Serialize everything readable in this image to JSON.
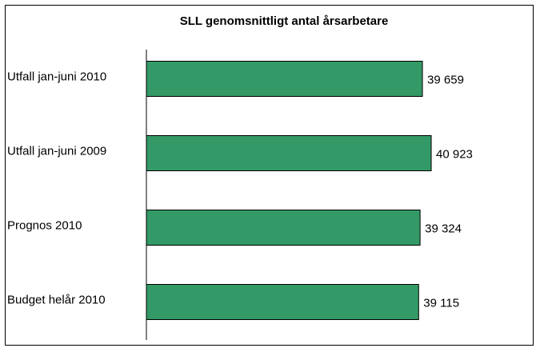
{
  "chart_data": {
    "type": "barh",
    "title": "SLL genomsnittligt antal årsarbetare",
    "categories": [
      "Utfall jan-juni 2010",
      "Utfall jan-juni 2009",
      "Prognos 2010",
      "Budget helår 2010"
    ],
    "values": [
      39659,
      40923,
      39324,
      39115
    ],
    "value_labels": [
      "39 659",
      "40 923",
      "39 324",
      "39 115"
    ],
    "color": "#339966",
    "xlim": [
      0,
      50000
    ]
  }
}
